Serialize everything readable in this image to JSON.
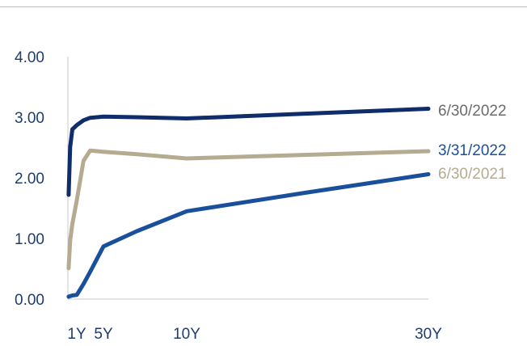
{
  "chart_data": {
    "type": "line",
    "x_ticks": [
      "1Y",
      "5Y",
      "10Y",
      "30Y"
    ],
    "y_ticks": [
      "4.00",
      "3.00",
      "2.00",
      "1.00",
      "0.00"
    ],
    "ylim": [
      0,
      4
    ],
    "xlim": [
      0,
      30
    ],
    "grid": false,
    "legend": "series labels at right end of lines",
    "series": [
      {
        "name": "6/30/2022",
        "color": "#0f2d6b",
        "x": [
          0.083,
          0.25,
          0.5,
          1,
          2,
          3,
          5,
          7,
          10,
          20,
          30
        ],
        "y": [
          1.72,
          2.51,
          2.8,
          2.87,
          2.95,
          2.99,
          3.01,
          3.0,
          2.98,
          3.06,
          3.14
        ]
      },
      {
        "name": "3/31/2022",
        "color": "#1a4f9c",
        "x": [
          0.083,
          0.25,
          0.5,
          1,
          2,
          3,
          5,
          7,
          10,
          20,
          30
        ],
        "y": [
          0.04,
          0.05,
          0.06,
          0.07,
          0.25,
          0.45,
          0.87,
          1.12,
          1.45,
          1.76,
          2.06
        ]
      },
      {
        "name": "6/30/2021",
        "color": "#b5ab91",
        "x": [
          0.083,
          0.25,
          0.5,
          1,
          2,
          3,
          5,
          7,
          10,
          20,
          30
        ],
        "y": [
          0.51,
          0.97,
          1.24,
          1.63,
          2.28,
          2.45,
          2.43,
          2.39,
          2.32,
          2.38,
          2.44
        ]
      }
    ]
  }
}
